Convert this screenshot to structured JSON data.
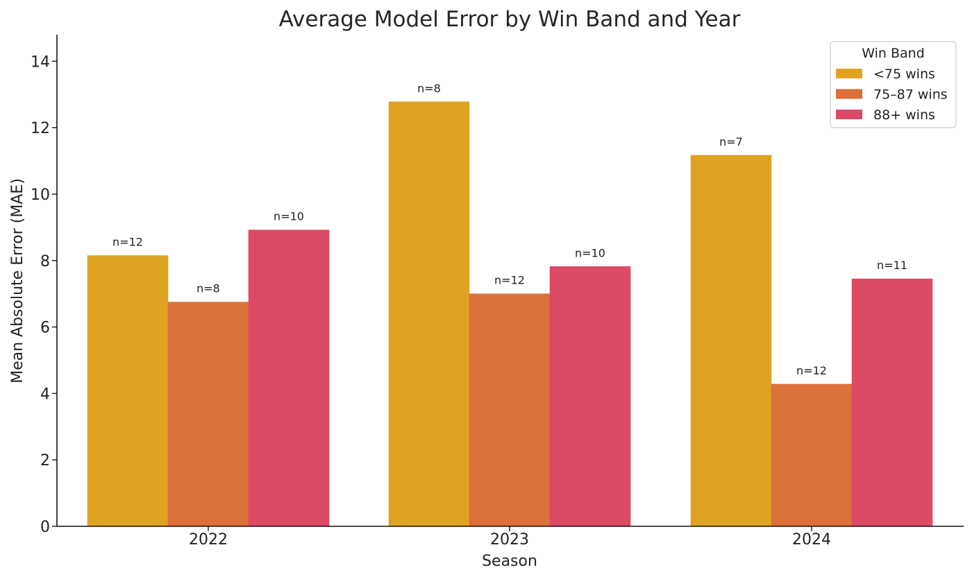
{
  "chart_data": {
    "type": "bar",
    "title": "Average Model Error by Win Band and Year",
    "xlabel": "Season",
    "ylabel": "Mean Absolute Error (MAE)",
    "categories": [
      "2022",
      "2023",
      "2024"
    ],
    "ylim": [
      0,
      14.8
    ],
    "yticks": [
      0,
      2,
      4,
      6,
      8,
      10,
      12,
      14
    ],
    "grid": false,
    "legend": {
      "title": "Win Band",
      "position": "top-right"
    },
    "series": [
      {
        "name": "<75 wins",
        "color": "#DFA321",
        "values": [
          8.15,
          12.78,
          11.17
        ],
        "labels": [
          "n=12",
          "n=8",
          "n=7"
        ]
      },
      {
        "name": "75–87 wins",
        "color": "#DB703A",
        "values": [
          6.75,
          7.0,
          4.28
        ],
        "labels": [
          "n=8",
          "n=12",
          "n=12"
        ]
      },
      {
        "name": "88+ wins",
        "color": "#DC4A66",
        "values": [
          8.92,
          7.82,
          7.45
        ],
        "labels": [
          "n=10",
          "n=10",
          "n=11"
        ]
      }
    ]
  }
}
